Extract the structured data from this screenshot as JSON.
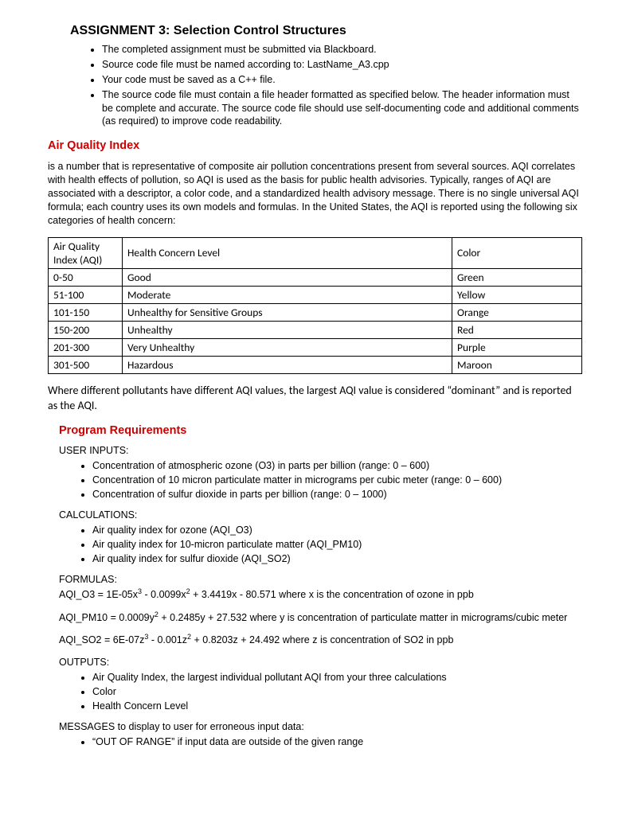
{
  "title": "ASSIGNMENT 3: Selection Control Structures",
  "intro_bullets": [
    "The completed assignment must be submitted via Blackboard.",
    "Source code file must be named according to: LastName_A3.cpp",
    "Your code must be saved as a C++ file.",
    "The source code file must contain a file header formatted as specified below. The header information must be complete and accurate. The source code file should use self-documenting code and additional comments (as required) to improve code readability."
  ],
  "aqi_heading": "Air Quality Index",
  "aqi_para": "is a number that is representative of composite air pollution concentrations present from several sources.  AQI correlates with health effects of pollution, so AQI is used as the basis for public health advisories.  Typically, ranges of AQI are associated with a descriptor, a color code, and a standardized health advisory message.  There is no single universal AQI formula; each country uses its own models and formulas.  In the United States, the AQI is reported using the following six categories of health concern:",
  "table": {
    "headers": {
      "aqi": "Air Quality Index (AQI)",
      "health": "Health Concern Level",
      "color": "Color"
    },
    "rows": [
      {
        "aqi": "0-50",
        "health": "Good",
        "color": "Green"
      },
      {
        "aqi": "51-100",
        "health": "Moderate",
        "color": "Yellow"
      },
      {
        "aqi": "101-150",
        "health": "Unhealthy for Sensitive Groups",
        "color": "Orange"
      },
      {
        "aqi": "150-200",
        "health": "Unhealthy",
        "color": "Red"
      },
      {
        "aqi": "201-300",
        "health": "Very Unhealthy",
        "color": "Purple"
      },
      {
        "aqi": "301-500",
        "health": "Hazardous",
        "color": "Maroon"
      }
    ]
  },
  "dominant_note": "Where different pollutants have different AQI values, the largest AQI value is considered “dominant” and is reported as the AQI.",
  "req_heading": "Program Requirements",
  "user_inputs_label": "USER INPUTS:",
  "user_inputs": [
    "Concentration of atmospheric ozone (O3) in parts per billion (range: 0 – 600)",
    "Concentration of 10 micron particulate matter in micrograms per cubic meter (range: 0 – 600)",
    "Concentration of sulfur dioxide in parts per billion  (range: 0 – 1000)"
  ],
  "calcs_label": "CALCULATIONS:",
  "calcs": [
    "Air quality index for ozone (AQI_O3)",
    "Air quality index for 10-micron particulate matter (AQI_PM10)",
    "Air quality index for sulfur dioxide (AQI_SO2)"
  ],
  "formulas_label": "FORMULAS:",
  "formula_o3_pre": "AQI_O3 = 1E-05x",
  "formula_o3_mid1": " - 0.0099x",
  "formula_o3_post": " + 3.4419x - 80.571 where x is the concentration of ozone in ppb",
  "formula_pm10_pre": "AQI_PM10 = 0.0009y",
  "formula_pm10_post": " + 0.2485y + 27.532 where y is concentration of particulate matter in micrograms/cubic meter",
  "formula_so2_pre": "AQI_SO2 = 6E-07z",
  "formula_so2_mid1": " - 0.001z",
  "formula_so2_post": " + 0.8203z + 24.492 where z is concentration of SO2 in ppb",
  "outputs_label": "OUTPUTS:",
  "outputs": [
    "Air Quality Index, the largest individual pollutant AQI from your three calculations",
    "Color",
    "Health Concern Level"
  ],
  "messages_label": "MESSAGES to display to user for erroneous input data:",
  "messages": [
    "“OUT OF RANGE” if input data are outside of the given range"
  ]
}
